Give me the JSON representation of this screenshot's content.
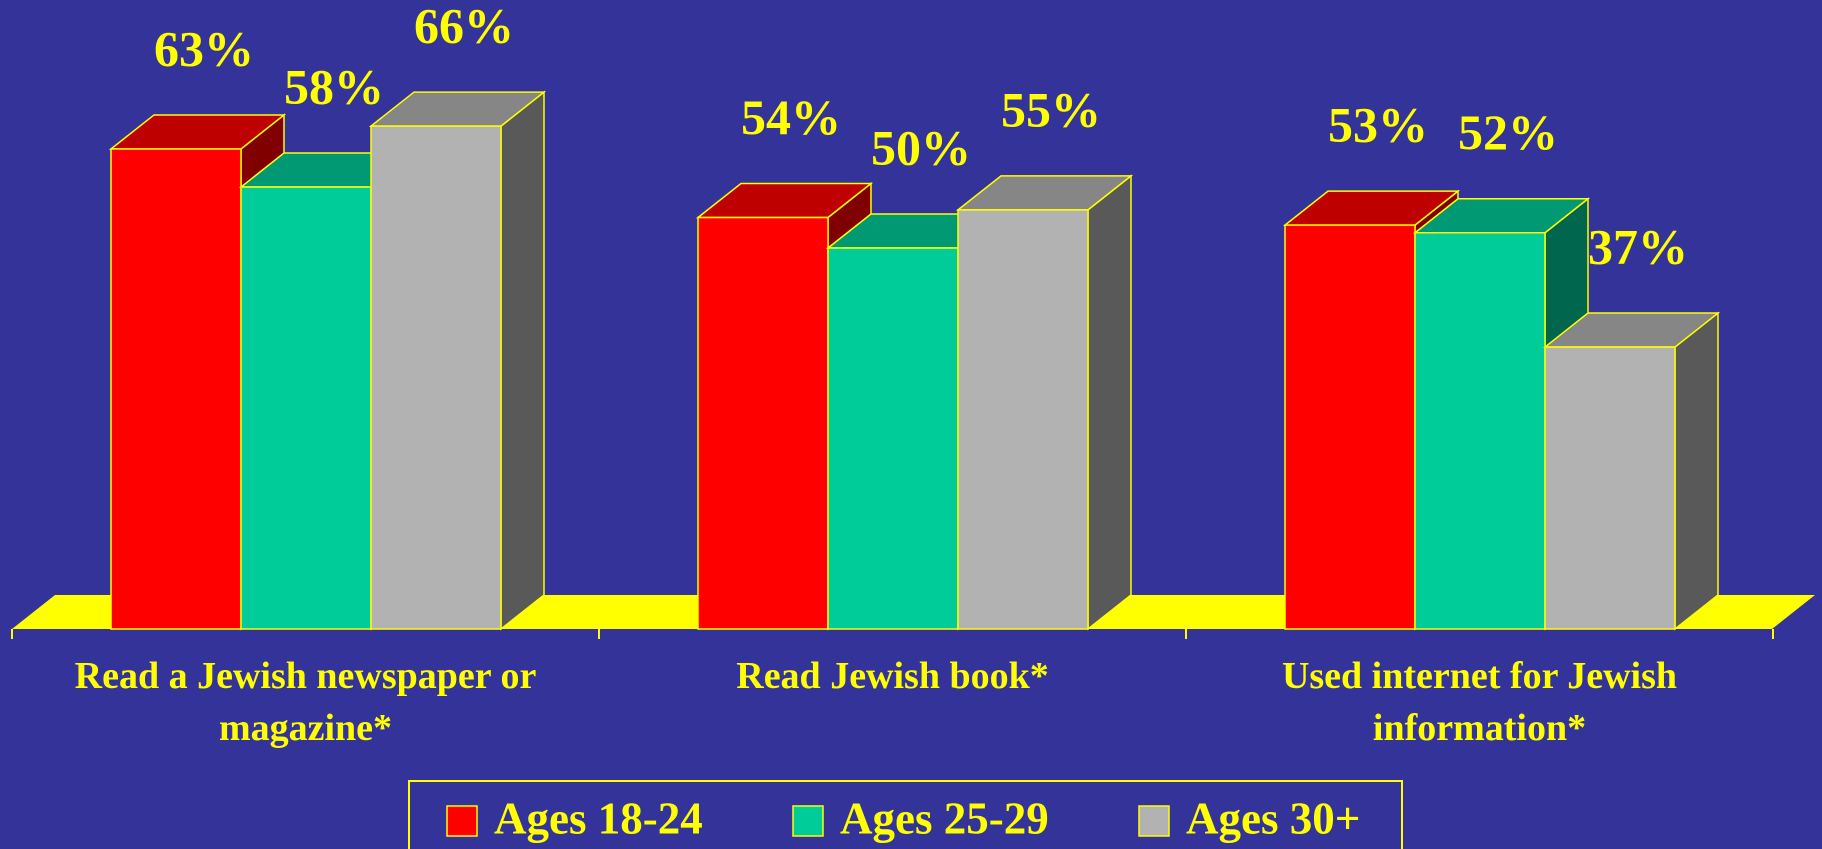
{
  "chart_data": {
    "type": "bar3d",
    "categories": [
      "Read a Jewish newspaper or magazine*",
      "Read Jewish book*",
      "Used internet for Jewish information*"
    ],
    "series": [
      {
        "name": "Ages 18-24",
        "color": "#ff0000",
        "values": [
          63,
          54,
          53
        ],
        "value_labels": [
          "63%",
          "54%",
          "53%"
        ]
      },
      {
        "name": "Ages 25-29",
        "color": "#00cc99",
        "values": [
          58,
          50,
          52
        ],
        "value_labels": [
          "58%",
          "50%",
          "52%"
        ]
      },
      {
        "name": "Ages 30+",
        "color": "#b2b2b2",
        "values": [
          66,
          55,
          37
        ],
        "value_labels": [
          "66%",
          "55%",
          "37%"
        ]
      }
    ],
    "legend": "bottom"
  }
}
